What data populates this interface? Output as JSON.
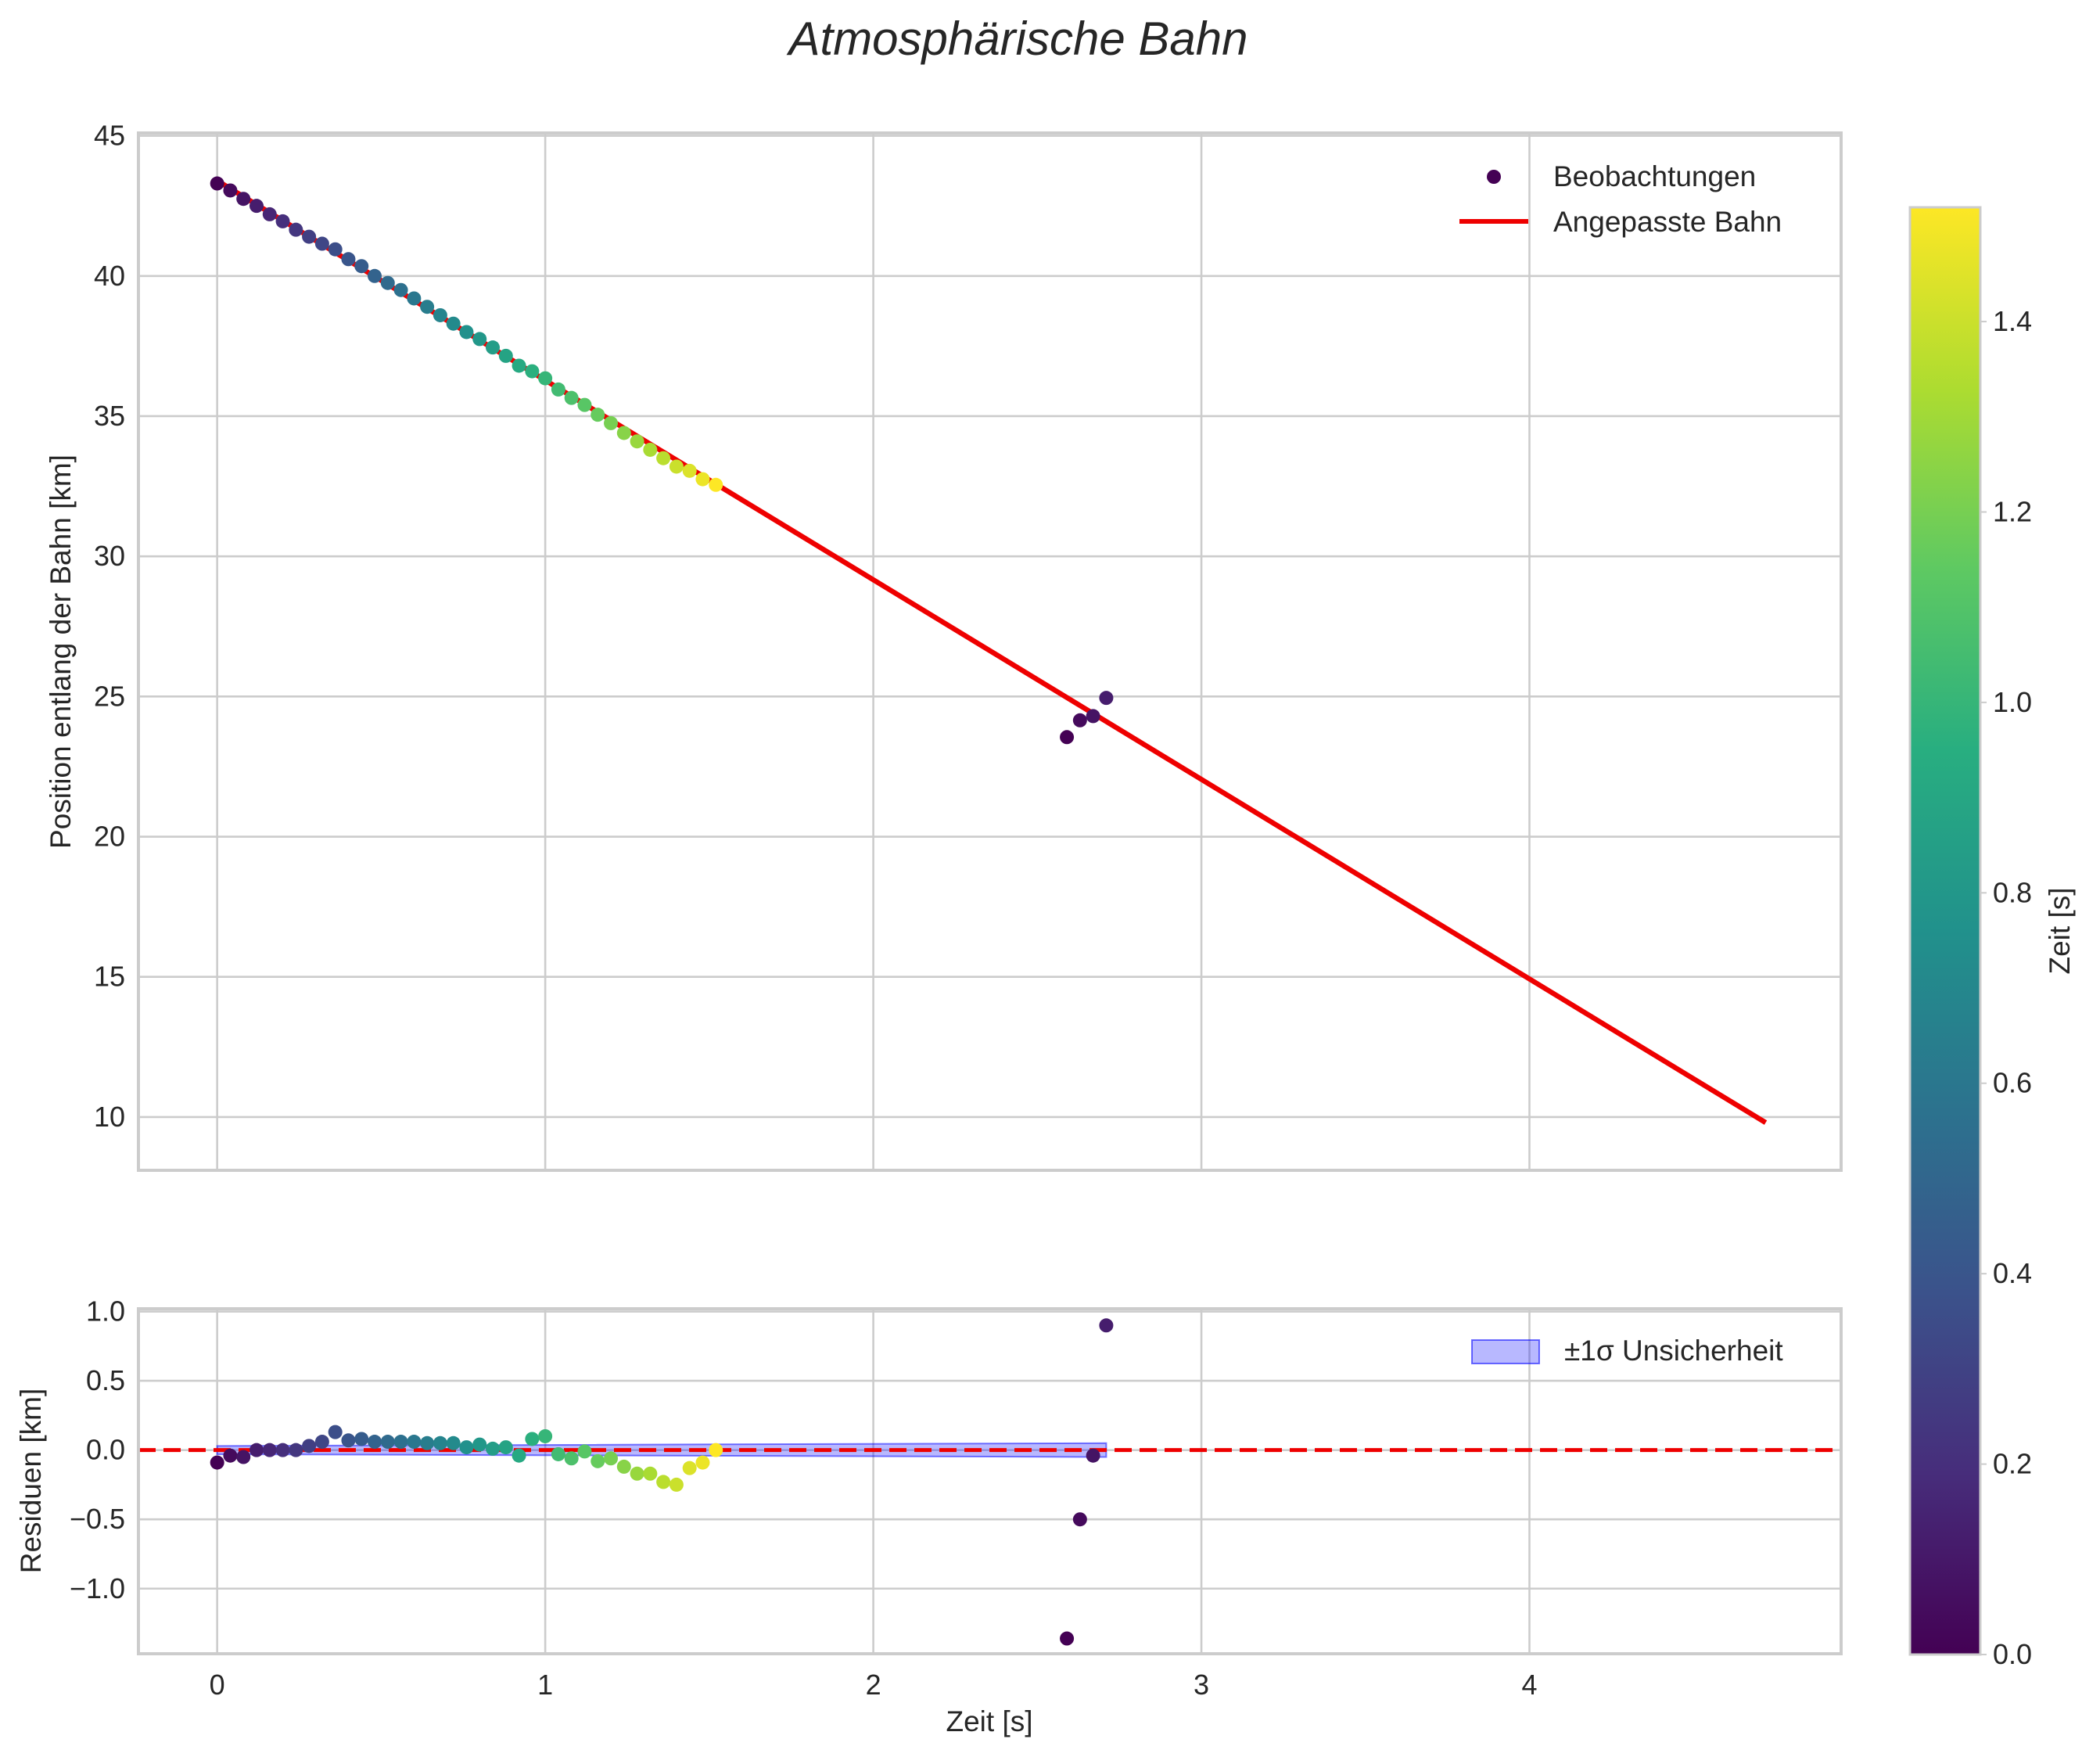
{
  "chart_data": {
    "title": "Atmosphärische Bahn",
    "colorbar": {
      "label": "Zeit [s]",
      "range": [
        0.0,
        1.52
      ],
      "ticks": [
        0.0,
        0.2,
        0.4,
        0.6,
        0.8,
        1.0,
        1.2,
        1.4
      ],
      "tick_labels": [
        "0.0",
        "0.2",
        "0.4",
        "0.6",
        "0.8",
        "1.0",
        "1.2",
        "1.4"
      ],
      "colormap": "viridis"
    },
    "panels": [
      {
        "id": "trajectory",
        "type": "scatter+line",
        "xlabel": "",
        "ylabel": "Position entlang der Bahn [km]",
        "xlim": [
          -0.24,
          4.95
        ],
        "ylim": [
          8.1,
          45.1
        ],
        "xticks": [
          0,
          1,
          2,
          3,
          4
        ],
        "yticks": [
          10,
          15,
          20,
          25,
          30,
          35,
          40,
          45
        ],
        "ytick_labels": [
          "10",
          "15",
          "20",
          "25",
          "30",
          "35",
          "40",
          "45"
        ],
        "legend": {
          "position": "top-right",
          "entries": [
            "Beobachtungen",
            "Angepasste Bahn"
          ]
        },
        "fit_line": {
          "name": "Angepasste Bahn",
          "color": "#ee0000",
          "x": [
            0.0,
            4.72
          ],
          "y": [
            43.4,
            9.8
          ]
        },
        "observations": {
          "name": "Beobachtungen",
          "t": [
            0.0,
            0.04,
            0.08,
            0.12,
            0.16,
            0.2,
            0.24,
            0.28,
            0.32,
            0.36,
            0.4,
            0.44,
            0.48,
            0.52,
            0.56,
            0.6,
            0.64,
            0.68,
            0.72,
            0.76,
            0.8,
            0.84,
            0.88,
            0.92,
            0.96,
            1.0,
            1.04,
            1.08,
            1.12,
            1.16,
            1.2,
            1.24,
            1.28,
            1.32,
            1.36,
            1.4,
            1.44,
            1.48,
            1.52,
            2.59,
            2.63,
            2.67,
            2.71
          ],
          "pos": [
            43.3,
            43.05,
            42.75,
            42.5,
            42.2,
            41.95,
            41.65,
            41.4,
            41.15,
            40.95,
            40.6,
            40.35,
            40.0,
            39.75,
            39.5,
            39.2,
            38.9,
            38.6,
            38.3,
            38.0,
            37.75,
            37.45,
            37.15,
            36.8,
            36.6,
            36.35,
            35.95,
            35.65,
            35.4,
            35.05,
            34.75,
            34.4,
            34.1,
            33.8,
            33.5,
            33.2,
            33.05,
            32.75,
            32.55,
            23.55,
            24.15,
            24.3,
            24.95
          ],
          "color_value": [
            0.0,
            0.04,
            0.08,
            0.12,
            0.16,
            0.2,
            0.24,
            0.28,
            0.32,
            0.36,
            0.4,
            0.44,
            0.48,
            0.52,
            0.56,
            0.6,
            0.64,
            0.68,
            0.72,
            0.76,
            0.8,
            0.84,
            0.88,
            0.92,
            0.96,
            1.0,
            1.04,
            1.08,
            1.12,
            1.16,
            1.2,
            1.24,
            1.28,
            1.32,
            1.36,
            1.4,
            1.44,
            1.48,
            1.52,
            0.0,
            0.04,
            0.08,
            0.12
          ]
        }
      },
      {
        "id": "residuals",
        "type": "scatter",
        "xlabel": "Zeit [s]",
        "ylabel": "Residuen [km]",
        "xlim": [
          -0.24,
          4.95
        ],
        "ylim": [
          -1.47,
          1.02
        ],
        "xticks": [
          0,
          1,
          2,
          3,
          4
        ],
        "xtick_labels": [
          "0",
          "1",
          "2",
          "3",
          "4"
        ],
        "yticks": [
          -1.0,
          -0.5,
          0.0,
          0.5,
          1.0
        ],
        "ytick_labels": [
          "−1.0",
          "−0.5",
          "0.0",
          "0.5",
          "1.0"
        ],
        "legend": {
          "position": "top-right",
          "entries": [
            "±1σ Unsicherheit"
          ]
        },
        "zero_line": {
          "y": 0.0,
          "color": "#ee0000",
          "style": "dashed"
        },
        "uncertainty_band": {
          "name": "±1σ Unsicherheit",
          "x": [
            0.0,
            2.71
          ],
          "lower": [
            -0.03,
            -0.05
          ],
          "upper": [
            0.03,
            0.05
          ]
        },
        "residuals": {
          "t": [
            0.0,
            0.04,
            0.08,
            0.12,
            0.16,
            0.2,
            0.24,
            0.28,
            0.32,
            0.36,
            0.4,
            0.44,
            0.48,
            0.52,
            0.56,
            0.6,
            0.64,
            0.68,
            0.72,
            0.76,
            0.8,
            0.84,
            0.88,
            0.92,
            0.96,
            1.0,
            1.04,
            1.08,
            1.12,
            1.16,
            1.2,
            1.24,
            1.28,
            1.32,
            1.36,
            1.4,
            1.44,
            1.48,
            1.52,
            2.59,
            2.63,
            2.67,
            2.71
          ],
          "value": [
            -0.09,
            -0.04,
            -0.05,
            0.0,
            0.0,
            0.0,
            0.0,
            0.03,
            0.06,
            0.13,
            0.07,
            0.08,
            0.06,
            0.06,
            0.06,
            0.06,
            0.05,
            0.05,
            0.05,
            0.02,
            0.04,
            0.01,
            0.02,
            -0.04,
            0.08,
            0.1,
            -0.03,
            -0.06,
            -0.01,
            -0.08,
            -0.06,
            -0.12,
            -0.17,
            -0.17,
            -0.23,
            -0.25,
            -0.13,
            -0.09,
            0.0,
            -1.36,
            -0.5,
            -0.04,
            0.9
          ],
          "color_value": [
            0.0,
            0.04,
            0.08,
            0.12,
            0.16,
            0.2,
            0.24,
            0.28,
            0.32,
            0.36,
            0.4,
            0.44,
            0.48,
            0.52,
            0.56,
            0.6,
            0.64,
            0.68,
            0.72,
            0.76,
            0.8,
            0.84,
            0.88,
            0.92,
            0.96,
            1.0,
            1.04,
            1.08,
            1.12,
            1.16,
            1.2,
            1.24,
            1.28,
            1.32,
            1.36,
            1.4,
            1.44,
            1.48,
            1.52,
            0.0,
            0.04,
            0.08,
            0.12
          ]
        }
      }
    ]
  }
}
